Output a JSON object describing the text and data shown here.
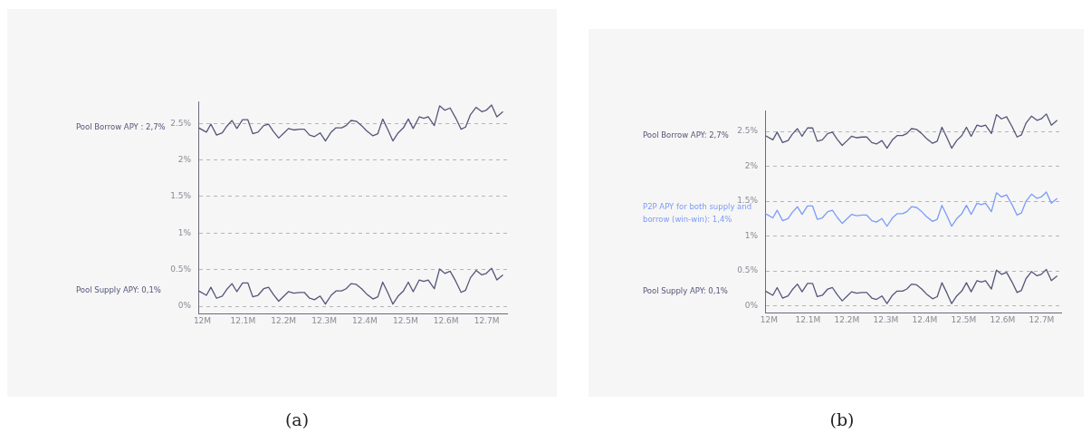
{
  "chart_data": [
    {
      "type": "line",
      "annotations": [
        "Pool Borrow APY : 2,7%",
        "Pool Supply APY: 0,1%",
        "(a)"
      ],
      "grid": "y",
      "legend": false,
      "marker": "none",
      "x": [
        11.991,
        12.01,
        12.021,
        12.035,
        12.049,
        12.06,
        12.073,
        12.085,
        12.099,
        12.112,
        12.124,
        12.137,
        12.151,
        12.163,
        12.175,
        12.188,
        12.201,
        12.212,
        12.225,
        12.24,
        12.251,
        12.264,
        12.276,
        12.29,
        12.303,
        12.317,
        12.329,
        12.343,
        12.354,
        12.366,
        12.379,
        12.392,
        12.404,
        12.42,
        12.432,
        12.444,
        12.457,
        12.469,
        12.482,
        12.495,
        12.507,
        12.519,
        12.534,
        12.545,
        12.556,
        12.571,
        12.584,
        12.597,
        12.61,
        12.624,
        12.637,
        12.648,
        12.66,
        12.674,
        12.688,
        12.699,
        12.712,
        12.725,
        12.74
      ],
      "series": [
        {
          "color": "#55557a",
          "values": [
            2.44,
            2.38,
            2.49,
            2.34,
            2.37,
            2.46,
            2.54,
            2.43,
            2.55,
            2.55,
            2.36,
            2.38,
            2.47,
            2.49,
            2.39,
            2.3,
            2.37,
            2.43,
            2.41,
            2.42,
            2.42,
            2.34,
            2.32,
            2.37,
            2.26,
            2.38,
            2.44,
            2.44,
            2.47,
            2.54,
            2.53,
            2.47,
            2.4,
            2.33,
            2.36,
            2.56,
            2.41,
            2.26,
            2.37,
            2.44,
            2.56,
            2.43,
            2.59,
            2.57,
            2.59,
            2.47,
            2.74,
            2.68,
            2.71,
            2.57,
            2.42,
            2.45,
            2.62,
            2.72,
            2.66,
            2.68,
            2.75,
            2.59,
            2.66
          ]
        },
        {
          "color": "#55557a",
          "values": [
            0.21,
            0.15,
            0.26,
            0.11,
            0.14,
            0.23,
            0.31,
            0.2,
            0.32,
            0.32,
            0.13,
            0.15,
            0.24,
            0.26,
            0.16,
            0.07,
            0.14,
            0.2,
            0.18,
            0.19,
            0.19,
            0.11,
            0.09,
            0.14,
            0.03,
            0.15,
            0.21,
            0.21,
            0.24,
            0.31,
            0.3,
            0.24,
            0.17,
            0.1,
            0.13,
            0.33,
            0.18,
            0.03,
            0.14,
            0.21,
            0.33,
            0.2,
            0.36,
            0.34,
            0.36,
            0.24,
            0.51,
            0.45,
            0.48,
            0.34,
            0.19,
            0.22,
            0.39,
            0.49,
            0.43,
            0.45,
            0.52,
            0.36,
            0.43
          ]
        }
      ],
      "xlim": [
        11.99,
        12.75
      ],
      "xticks": [
        {
          "value": 12,
          "label": "12M"
        },
        {
          "value": 12.1,
          "label": "12.1M"
        },
        {
          "value": 12.2,
          "label": "12.2M"
        },
        {
          "value": 12.3,
          "label": "12.3M"
        },
        {
          "value": 12.4,
          "label": "12.4M"
        },
        {
          "value": 12.5,
          "label": "12.5M"
        },
        {
          "value": 12.6,
          "label": "12.6M"
        },
        {
          "value": 12.7,
          "label": "12.7M"
        }
      ],
      "ylim": [
        -0.1,
        2.8
      ],
      "yticks": [
        {
          "value": 0,
          "label": "0%"
        },
        {
          "value": 0.5,
          "label": "0.5%"
        },
        {
          "value": 1,
          "label": "1%"
        },
        {
          "value": 1.5,
          "label": "1.5%"
        },
        {
          "value": 2,
          "label": "2%"
        },
        {
          "value": 2.5,
          "label": "2.5%"
        }
      ]
    },
    {
      "type": "line",
      "annotations": [
        "Pool Borrow APY: 2,7%",
        "P2P APY for both supply and borrow (win-win): 1,4%",
        "Pool Supply APY: 0,1%",
        "(b)"
      ],
      "grid": "y",
      "legend": false,
      "marker": "none",
      "x": [
        11.991,
        12.01,
        12.021,
        12.035,
        12.049,
        12.06,
        12.073,
        12.085,
        12.099,
        12.112,
        12.124,
        12.137,
        12.151,
        12.163,
        12.175,
        12.188,
        12.201,
        12.212,
        12.225,
        12.24,
        12.251,
        12.264,
        12.276,
        12.29,
        12.303,
        12.317,
        12.329,
        12.343,
        12.354,
        12.366,
        12.379,
        12.392,
        12.404,
        12.42,
        12.432,
        12.444,
        12.457,
        12.469,
        12.482,
        12.495,
        12.507,
        12.519,
        12.534,
        12.545,
        12.556,
        12.571,
        12.584,
        12.597,
        12.61,
        12.624,
        12.637,
        12.648,
        12.66,
        12.674,
        12.688,
        12.699,
        12.712,
        12.725,
        12.74
      ],
      "series": [
        {
          "color": "#55557a",
          "values": [
            2.44,
            2.38,
            2.49,
            2.34,
            2.37,
            2.46,
            2.54,
            2.43,
            2.55,
            2.55,
            2.36,
            2.38,
            2.47,
            2.49,
            2.39,
            2.3,
            2.37,
            2.43,
            2.41,
            2.42,
            2.42,
            2.34,
            2.32,
            2.37,
            2.26,
            2.38,
            2.44,
            2.44,
            2.47,
            2.54,
            2.53,
            2.47,
            2.4,
            2.33,
            2.36,
            2.56,
            2.41,
            2.26,
            2.37,
            2.44,
            2.56,
            2.43,
            2.59,
            2.57,
            2.59,
            2.47,
            2.74,
            2.68,
            2.71,
            2.57,
            2.42,
            2.45,
            2.62,
            2.72,
            2.66,
            2.68,
            2.75,
            2.59,
            2.66
          ]
        },
        {
          "color": "#7b9cf7",
          "values": [
            1.32,
            1.26,
            1.37,
            1.22,
            1.25,
            1.34,
            1.42,
            1.31,
            1.43,
            1.43,
            1.24,
            1.26,
            1.35,
            1.37,
            1.27,
            1.18,
            1.25,
            1.31,
            1.29,
            1.3,
            1.3,
            1.22,
            1.2,
            1.25,
            1.14,
            1.26,
            1.32,
            1.32,
            1.35,
            1.42,
            1.41,
            1.35,
            1.28,
            1.21,
            1.24,
            1.44,
            1.29,
            1.14,
            1.25,
            1.32,
            1.44,
            1.31,
            1.47,
            1.45,
            1.47,
            1.35,
            1.62,
            1.56,
            1.59,
            1.45,
            1.3,
            1.33,
            1.5,
            1.6,
            1.54,
            1.56,
            1.63,
            1.47,
            1.54
          ]
        },
        {
          "color": "#55557a",
          "values": [
            0.21,
            0.15,
            0.26,
            0.11,
            0.14,
            0.23,
            0.31,
            0.2,
            0.32,
            0.32,
            0.13,
            0.15,
            0.24,
            0.26,
            0.16,
            0.07,
            0.14,
            0.2,
            0.18,
            0.19,
            0.19,
            0.11,
            0.09,
            0.14,
            0.03,
            0.15,
            0.21,
            0.21,
            0.24,
            0.31,
            0.3,
            0.24,
            0.17,
            0.1,
            0.13,
            0.33,
            0.18,
            0.03,
            0.14,
            0.21,
            0.33,
            0.2,
            0.36,
            0.34,
            0.36,
            0.24,
            0.51,
            0.45,
            0.48,
            0.34,
            0.19,
            0.22,
            0.39,
            0.49,
            0.43,
            0.45,
            0.52,
            0.36,
            0.43
          ]
        }
      ],
      "xlim": [
        11.99,
        12.75
      ],
      "xticks": [
        {
          "value": 12,
          "label": "12M"
        },
        {
          "value": 12.1,
          "label": "12.1M"
        },
        {
          "value": 12.2,
          "label": "12.2M"
        },
        {
          "value": 12.3,
          "label": "12.3M"
        },
        {
          "value": 12.4,
          "label": "12.4M"
        },
        {
          "value": 12.5,
          "label": "12.5M"
        },
        {
          "value": 12.6,
          "label": "12.6M"
        },
        {
          "value": 12.7,
          "label": "12.7M"
        }
      ],
      "ylim": [
        -0.1,
        2.8
      ],
      "yticks": [
        {
          "value": 0,
          "label": "0%"
        },
        {
          "value": 0.5,
          "label": "0.5%"
        },
        {
          "value": 1,
          "label": "1%"
        },
        {
          "value": 1.5,
          "label": "1.5%"
        },
        {
          "value": 2,
          "label": "2%"
        },
        {
          "value": 2.5,
          "label": "2.5%"
        }
      ]
    }
  ]
}
